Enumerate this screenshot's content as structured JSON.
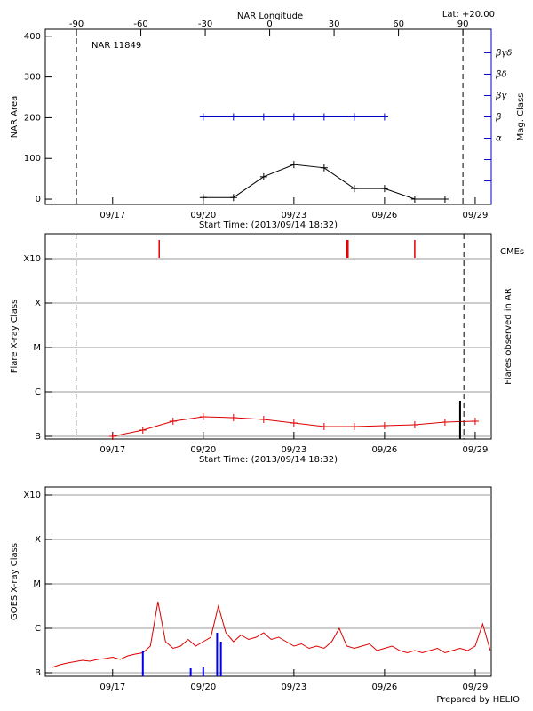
{
  "chart_data": [
    {
      "type": "line",
      "title": "NAR 11849",
      "annotation": "Lat: +20.00",
      "x2label": "NAR Longitude",
      "x2lim": [
        -104.5,
        103.2
      ],
      "x2ticks": [
        -90,
        -60,
        -30,
        0,
        30,
        60,
        90
      ],
      "limb_lines": [
        -90,
        90
      ],
      "xlabel": "Start Time: (2013/09/14 18:32)",
      "xlim": [
        "09/14 18:32",
        "09/29 12:45"
      ],
      "xticks": [
        "09/17",
        "09/20",
        "09/23",
        "09/26",
        "09/29"
      ],
      "ylabel": "NAR Area",
      "ylim": [
        -13,
        417
      ],
      "yticks": [
        0,
        100,
        200,
        300,
        400
      ],
      "y2label": "Mag. Class",
      "y2color": "#0000cc",
      "y2lim": [
        -2.1,
        6.1
      ],
      "y2ticks": [
        {
          "value": -1,
          "label": null
        },
        {
          "value": 0,
          "label": null
        },
        {
          "value": 1,
          "label": "α"
        },
        {
          "value": 2,
          "label": "β"
        },
        {
          "value": 3,
          "label": "βγ"
        },
        {
          "value": 4,
          "label": "βδ"
        },
        {
          "value": 5,
          "label": "βγδ"
        }
      ],
      "series": [
        {
          "type": "line",
          "color": "#000000",
          "marker": "+",
          "x": [
            "09/20",
            "09/21",
            "09/22",
            "09/23",
            "09/24",
            "09/25",
            "09/26",
            "09/27",
            "09/28"
          ],
          "values": [
            4,
            4,
            55,
            85,
            77,
            26,
            26,
            0,
            0
          ]
        },
        {
          "type": "line",
          "color": "#0000cc",
          "marker": "+",
          "axis": "y2",
          "x": [
            "09/20",
            "09/21",
            "09/22",
            "09/23",
            "09/24",
            "09/25",
            "09/26"
          ],
          "values": [
            2,
            2,
            2,
            2,
            2,
            2,
            2
          ]
        }
      ]
    },
    {
      "type": "line",
      "xlabel": "Start Time: (2013/09/14 18:32)",
      "xlim": [
        "09/14 18:32",
        "09/29 12:45"
      ],
      "xticks": [
        "09/17",
        "09/20",
        "09/23",
        "09/26",
        "09/29"
      ],
      "limb_lines": [
        "09/15 19:00",
        "09/28 15:00"
      ],
      "ylabel": "Flare X-ray Class",
      "ylim": [
        -0.06,
        4.56
      ],
      "yticks": [
        {
          "value": 0,
          "label": "B"
        },
        {
          "value": 1,
          "label": "C"
        },
        {
          "value": 2,
          "label": "M"
        },
        {
          "value": 3,
          "label": "X"
        },
        {
          "value": 4,
          "label": "X10"
        }
      ],
      "grid": true,
      "y2label": "Flares observed in AR",
      "series": [
        {
          "type": "line",
          "color": "#dd0000",
          "marker": "+",
          "x": [
            "09/17",
            "09/18",
            "09/19",
            "09/20",
            "09/21",
            "09/22",
            "09/23",
            "09/24",
            "09/25",
            "09/26",
            "09/27",
            "09/28",
            "09/29"
          ],
          "values": [
            0,
            0.14,
            0.34,
            0.44,
            0.42,
            0.38,
            0.3,
            0.22,
            0.22,
            0.24,
            0.26,
            0.32,
            0.34
          ]
        },
        {
          "type": "bar",
          "color": "#000000",
          "x": [
            "09/28 12:00"
          ],
          "values": [
            0.8
          ]
        },
        {
          "type": "event",
          "name": "CMEs",
          "color": "#dd0000",
          "x": [
            "09/18 13:00",
            "09/24 18:00",
            "09/24 19:00",
            "09/27 00:00"
          ]
        }
      ]
    },
    {
      "type": "line",
      "xlim": [
        "09/14 18:32",
        "09/29 12:45"
      ],
      "xticks": [
        "09/17",
        "09/20",
        "09/23",
        "09/26",
        "09/29"
      ],
      "ylabel": "GOES X-ray Class",
      "ylim": [
        -0.08,
        4.18
      ],
      "yticks": [
        {
          "value": 0,
          "label": "B"
        },
        {
          "value": 1,
          "label": "C"
        },
        {
          "value": 2,
          "label": "M"
        },
        {
          "value": 3,
          "label": "X"
        },
        {
          "value": 4,
          "label": "X10"
        }
      ],
      "grid": true,
      "series": [
        {
          "type": "line",
          "color": "#dd0000",
          "x": [
            "09/15 00:00",
            "09/15 06:00",
            "09/15 12:00",
            "09/15 18:00",
            "09/16 00:00",
            "09/16 06:00",
            "09/16 12:00",
            "09/16 18:00",
            "09/17 00:00",
            "09/17 06:00",
            "09/17 12:00",
            "09/17 18:00",
            "09/18 00:00",
            "09/18 06:00",
            "09/18 12:00",
            "09/18 18:00",
            "09/19 00:00",
            "09/19 06:00",
            "09/19 12:00",
            "09/19 18:00",
            "09/20 00:00",
            "09/20 06:00",
            "09/20 12:00",
            "09/20 18:00",
            "09/21 00:00",
            "09/21 06:00",
            "09/21 12:00",
            "09/21 18:00",
            "09/22 00:00",
            "09/22 06:00",
            "09/22 12:00",
            "09/22 18:00",
            "09/23 00:00",
            "09/23 06:00",
            "09/23 12:00",
            "09/23 18:00",
            "09/24 00:00",
            "09/24 06:00",
            "09/24 12:00",
            "09/24 18:00",
            "09/25 00:00",
            "09/25 06:00",
            "09/25 12:00",
            "09/25 18:00",
            "09/26 00:00",
            "09/26 06:00",
            "09/26 12:00",
            "09/26 18:00",
            "09/27 00:00",
            "09/27 06:00",
            "09/27 12:00",
            "09/27 18:00",
            "09/28 00:00",
            "09/28 06:00",
            "09/28 12:00",
            "09/28 18:00",
            "09/29 00:00",
            "09/29 06:00",
            "09/29 12:00"
          ],
          "values": [
            0.12,
            0.18,
            0.22,
            0.25,
            0.28,
            0.26,
            0.3,
            0.32,
            0.35,
            0.3,
            0.38,
            0.42,
            0.45,
            0.6,
            1.6,
            0.7,
            0.55,
            0.6,
            0.75,
            0.6,
            0.7,
            0.8,
            1.5,
            0.9,
            0.7,
            0.85,
            0.75,
            0.8,
            0.9,
            0.75,
            0.8,
            0.7,
            0.6,
            0.65,
            0.55,
            0.6,
            0.55,
            0.7,
            1.0,
            0.6,
            0.55,
            0.6,
            0.65,
            0.5,
            0.55,
            0.6,
            0.5,
            0.45,
            0.5,
            0.45,
            0.5,
            0.55,
            0.45,
            0.5,
            0.55,
            0.5,
            0.6,
            1.1,
            0.5
          ]
        },
        {
          "type": "bar",
          "color": "#0000ee",
          "x": [
            "09/18 00:00",
            "09/19 14:00",
            "09/20 00:00",
            "09/20 11:00",
            "09/20 14:00"
          ],
          "values": [
            0.5,
            0.1,
            0.12,
            0.9,
            0.7
          ]
        }
      ]
    }
  ],
  "footer": "Prepared by HELIO"
}
